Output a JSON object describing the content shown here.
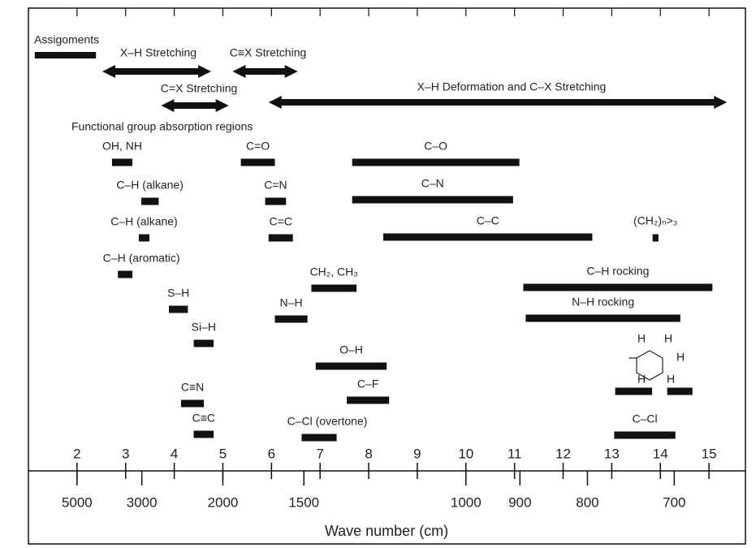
{
  "chart_data": {
    "type": "range",
    "xlabel": "Wave number (cm)",
    "xlim": [
      1,
      15.75
    ],
    "xticks": [
      2,
      3,
      4,
      5,
      6,
      7,
      8,
      9,
      10,
      11,
      12,
      13,
      14,
      15
    ],
    "x2ticks": [
      5000,
      3000,
      2000,
      1500,
      1000,
      900,
      800,
      700
    ],
    "color": "#111111",
    "assignments_title": "Assigoments",
    "assignments_bar": {
      "start": 1.13,
      "end": 2.39
    },
    "arrows": [
      {
        "label": "X–H Stretching",
        "start": 2.52,
        "end": 4.76
      },
      {
        "label": "C≡X Stretching",
        "start": 5.2,
        "end": 6.54
      },
      {
        "label": "C=X Stretching",
        "start": 3.73,
        "end": 5.12
      },
      {
        "label": "X–H Deformation and C–X Stretching",
        "start": 5.94,
        "end": 15.37
      }
    ],
    "section_title": "Functional group absorption regions",
    "bars": [
      {
        "label": "OH, NH",
        "start": 2.72,
        "end": 3.14
      },
      {
        "label": "C–H (alkane)",
        "start": 3.32,
        "end": 3.68
      },
      {
        "label": "C–H (alkane)",
        "start": 3.27,
        "end": 3.49
      },
      {
        "label": "C–H (aromatic)",
        "start": 2.84,
        "end": 3.14
      },
      {
        "label": "S–H",
        "start": 3.89,
        "end": 4.28
      },
      {
        "label": "Si–H",
        "start": 4.4,
        "end": 4.81
      },
      {
        "label": "C≡N",
        "start": 4.14,
        "end": 4.61
      },
      {
        "label": "C≡C",
        "start": 4.4,
        "end": 4.81
      },
      {
        "label": "C=O",
        "start": 5.37,
        "end": 6.07
      },
      {
        "label": "C=N",
        "start": 5.87,
        "end": 6.3
      },
      {
        "label": "C=C",
        "start": 5.94,
        "end": 6.44
      },
      {
        "label": "CH₂, CH₃",
        "start": 6.82,
        "end": 7.75
      },
      {
        "label": "N–H",
        "start": 6.07,
        "end": 6.74
      },
      {
        "label": "O–H",
        "start": 6.91,
        "end": 8.37
      },
      {
        "label": "C–F",
        "start": 7.55,
        "end": 8.42
      },
      {
        "label": "C–Cl (overtone)",
        "start": 6.62,
        "end": 7.34
      },
      {
        "label": "C–O",
        "start": 7.66,
        "end": 11.1
      },
      {
        "label": "C–N",
        "start": 7.66,
        "end": 10.97
      },
      {
        "label": "C–C",
        "start": 8.3,
        "end": 12.6
      },
      {
        "label": "(CH₂)ₙ>₃",
        "start": 13.84,
        "end": 13.96
      },
      {
        "label": "C–H rocking",
        "start": 11.18,
        "end": 15.07
      },
      {
        "label": "N–H rocking",
        "start": 11.23,
        "end": 14.41
      },
      {
        "start": 13.07,
        "end": 13.83
      },
      {
        "start": 14.14,
        "end": 14.66
      },
      {
        "label": "C–Cl",
        "start": 13.05,
        "end": 14.31
      }
    ],
    "ring_atom": "H"
  }
}
